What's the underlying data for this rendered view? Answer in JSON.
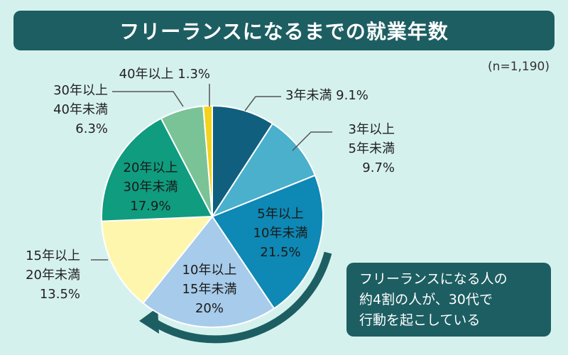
{
  "header": {
    "title": "フリーランスになるまでの就業年数"
  },
  "sample_note": "(n=1,190)",
  "callout": {
    "lines": [
      "フリーランスになる人の",
      "約4割の人が、30代で",
      "行動を起こしている"
    ]
  },
  "chart_data": {
    "type": "pie",
    "title": "フリーランスになるまでの就業年数",
    "slices": [
      {
        "label_lines": [
          "3年未満 9.1%"
        ],
        "value": 9.1,
        "color": "#105f7e"
      },
      {
        "label_lines": [
          "3年以上",
          "5年未満",
          "9.7%"
        ],
        "value": 9.7,
        "color": "#4ab0cc"
      },
      {
        "label_lines": [
          "5年以上",
          "10年未満",
          "21.5%"
        ],
        "value": 21.5,
        "color": "#0e88b4"
      },
      {
        "label_lines": [
          "10年以上",
          "15年未満",
          "20%"
        ],
        "value": 20.0,
        "color": "#a7cbea"
      },
      {
        "label_lines": [
          "15年以上",
          "20年未満",
          "13.5%"
        ],
        "value": 13.5,
        "color": "#fff6ae"
      },
      {
        "label_lines": [
          "20年以上",
          "30年未満",
          "17.9%"
        ],
        "value": 17.9,
        "color": "#0f9c7f"
      },
      {
        "label_lines": [
          "30年以上",
          "40年未満",
          "6.3%"
        ],
        "value": 6.3,
        "color": "#7ac396"
      },
      {
        "label_lines": [
          "40年以上 1.3%"
        ],
        "value": 1.3,
        "color": "#f5d21c"
      }
    ]
  }
}
